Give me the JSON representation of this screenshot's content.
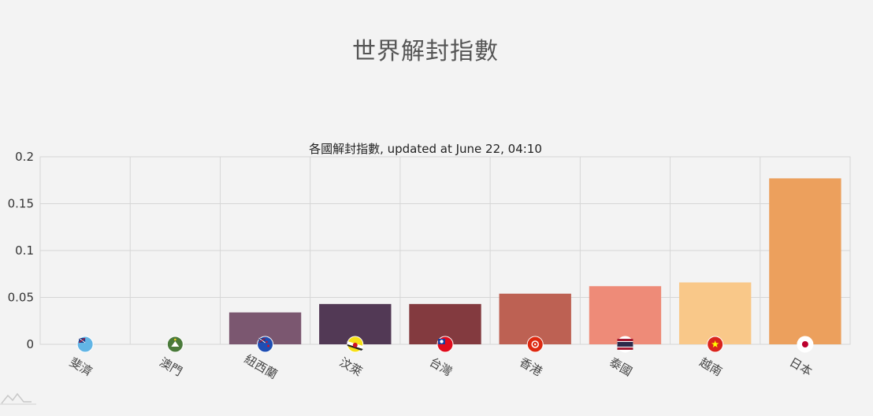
{
  "page": {
    "title": "世界解封指數"
  },
  "chart_data": {
    "type": "bar",
    "title": "各國解封指數, updated at June 22, 04:10",
    "xlabel": "",
    "ylabel": "",
    "ylim": [
      0,
      0.2
    ],
    "yticks": [
      "0",
      "0.05",
      "0.1",
      "0.15",
      "0.2"
    ],
    "grid": true,
    "categories": [
      "斐濟",
      "澳門",
      "紐西蘭",
      "汶萊",
      "台灣",
      "香港",
      "泰國",
      "越南",
      "日本"
    ],
    "values": [
      0,
      0,
      0.034,
      0.043,
      0.043,
      0.054,
      0.062,
      0.066,
      0.177
    ],
    "colors": [
      "#7a5a9e",
      "#6a4f8a",
      "#7b5770",
      "#523955",
      "#833a3f",
      "#bd6153",
      "#ee8b78",
      "#f9c889",
      "#eca05d"
    ],
    "flags": [
      {
        "name": "fiji-flag-icon",
        "bg": "#62b5e5",
        "mark": "#ffffff",
        "accent": "#cf142b"
      },
      {
        "name": "macau-flag-icon",
        "bg": "#4a7a3b",
        "mark": "#ffffff",
        "accent": "#f7d117"
      },
      {
        "name": "new-zealand-flag-icon",
        "bg": "#1f4eb4",
        "mark": "#ffffff",
        "accent": "#cc142b"
      },
      {
        "name": "brunei-flag-icon",
        "bg": "#f7e017",
        "mark": "#222222",
        "accent": "#ffffff"
      },
      {
        "name": "taiwan-flag-icon",
        "bg": "#e00b1c",
        "mark": "#1a3d9e",
        "accent": "#ffffff"
      },
      {
        "name": "hong-kong-flag-icon",
        "bg": "#de2910",
        "mark": "#ffffff",
        "accent": "#ffffff"
      },
      {
        "name": "thailand-flag-icon",
        "bg": "#ffffff",
        "mark": "#2d2a4a",
        "accent": "#a51931"
      },
      {
        "name": "vietnam-flag-icon",
        "bg": "#da251d",
        "mark": "#ffff00",
        "accent": "#ffff00"
      },
      {
        "name": "japan-flag-icon",
        "bg": "#ffffff",
        "mark": "#bc002d",
        "accent": "#bc002d"
      }
    ]
  }
}
